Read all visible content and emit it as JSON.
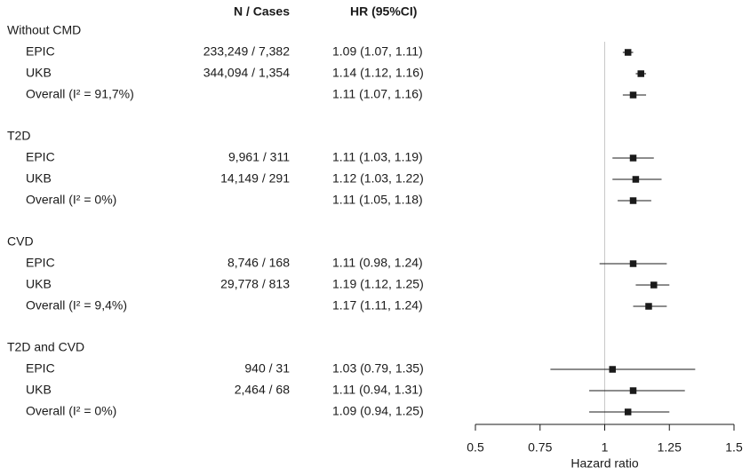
{
  "chart_data": {
    "type": "forest",
    "column_headers": {
      "n_cases": "N / Cases",
      "hr_ci": "HR (95%CI)"
    },
    "groups": [
      {
        "name": "Without CMD",
        "rows": [
          {
            "label": "EPIC",
            "n_cases": "233,249 / 7,382",
            "hr_text": "1.09 (1.07, 1.11)",
            "hr": 1.09,
            "lo": 1.07,
            "hi": 1.11
          },
          {
            "label": "UKB",
            "n_cases": "344,094 / 1,354",
            "hr_text": "1.14 (1.12, 1.16)",
            "hr": 1.14,
            "lo": 1.12,
            "hi": 1.16
          },
          {
            "label": "Overall (I² = 91,7%)",
            "n_cases": "",
            "hr_text": "1.11 (1.07, 1.16)",
            "hr": 1.11,
            "lo": 1.07,
            "hi": 1.16
          }
        ]
      },
      {
        "name": "T2D",
        "rows": [
          {
            "label": "EPIC",
            "n_cases": "9,961 / 311",
            "hr_text": "1.11 (1.03, 1.19)",
            "hr": 1.11,
            "lo": 1.03,
            "hi": 1.19
          },
          {
            "label": "UKB",
            "n_cases": "14,149 / 291",
            "hr_text": "1.12 (1.03, 1.22)",
            "hr": 1.12,
            "lo": 1.03,
            "hi": 1.22
          },
          {
            "label": "Overall (I² = 0%)",
            "n_cases": "",
            "hr_text": "1.11 (1.05, 1.18)",
            "hr": 1.11,
            "lo": 1.05,
            "hi": 1.18
          }
        ]
      },
      {
        "name": "CVD",
        "rows": [
          {
            "label": "EPIC",
            "n_cases": "8,746 / 168",
            "hr_text": "1.11 (0.98, 1.24)",
            "hr": 1.11,
            "lo": 0.98,
            "hi": 1.24
          },
          {
            "label": "UKB",
            "n_cases": "29,778 / 813",
            "hr_text": "1.19 (1.12, 1.25)",
            "hr": 1.19,
            "lo": 1.12,
            "hi": 1.25
          },
          {
            "label": "Overall (I² = 9,4%)",
            "n_cases": "",
            "hr_text": "1.17 (1.11, 1.24)",
            "hr": 1.17,
            "lo": 1.11,
            "hi": 1.24
          }
        ]
      },
      {
        "name": "T2D and CVD",
        "rows": [
          {
            "label": "EPIC",
            "n_cases": "940 / 31",
            "hr_text": "1.03 (0.79, 1.35)",
            "hr": 1.03,
            "lo": 0.79,
            "hi": 1.35
          },
          {
            "label": "UKB",
            "n_cases": "2,464 / 68",
            "hr_text": "1.11 (0.94, 1.31)",
            "hr": 1.11,
            "lo": 0.94,
            "hi": 1.31
          },
          {
            "label": "Overall (I² = 0%)",
            "n_cases": "",
            "hr_text": "1.09 (0.94, 1.25)",
            "hr": 1.09,
            "lo": 0.94,
            "hi": 1.25
          }
        ]
      }
    ],
    "x_axis": {
      "label": "Hazard ratio",
      "ticks": [
        0.5,
        0.75,
        1,
        1.25,
        1.5
      ],
      "tick_labels": [
        "0.5",
        "0.75",
        "1",
        "1.25",
        "1.5"
      ],
      "range": [
        0.5,
        1.5
      ],
      "reference_line": 1
    },
    "colors": {
      "marker": "#1a1a1a",
      "reference_line": "#c8c8c8",
      "text": "#1a1a1a"
    }
  }
}
